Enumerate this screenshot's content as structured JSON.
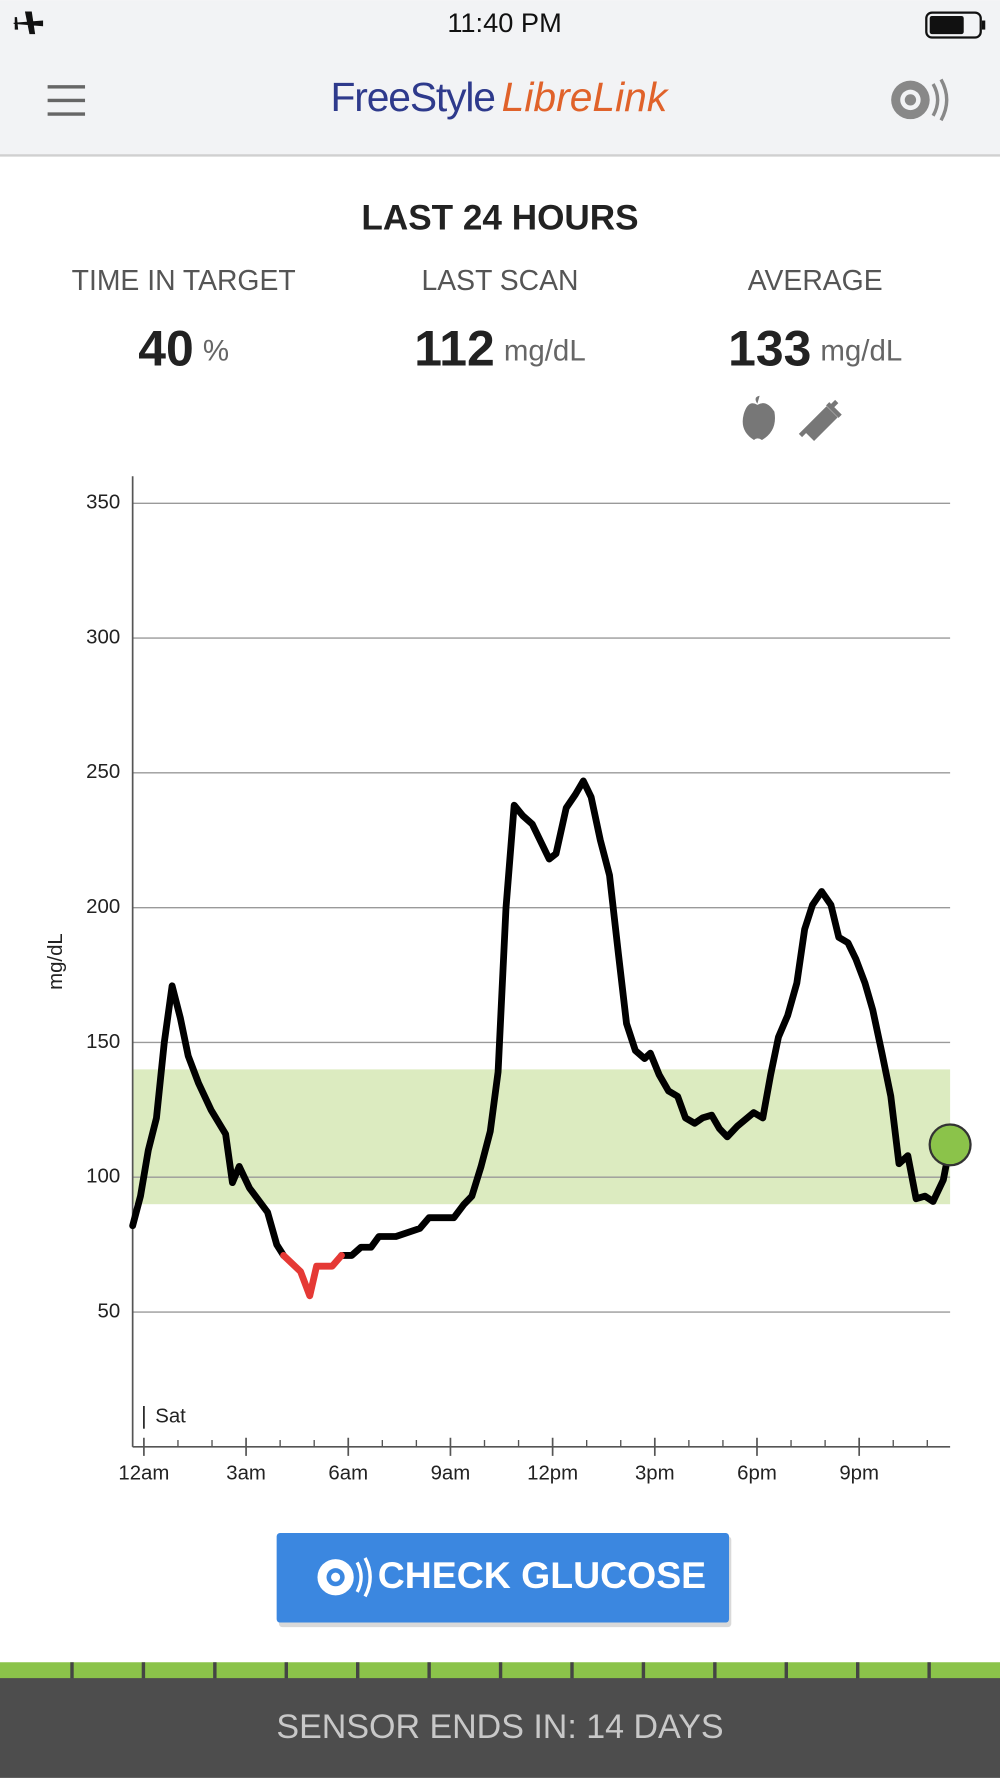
{
  "status_bar": {
    "time": "11:40 PM"
  },
  "header": {
    "brand_freestyle": "FreeStyle",
    "brand_librelink": "LibreLink"
  },
  "summary": {
    "title": "LAST 24 HOURS",
    "stats": [
      {
        "label": "TIME IN TARGET",
        "value": 40,
        "unit": "%"
      },
      {
        "label": "LAST SCAN",
        "value": 112,
        "unit": "mg/dL"
      },
      {
        "label": "AVERAGE",
        "value": 133,
        "unit": "mg/dL"
      }
    ]
  },
  "chart_data": {
    "type": "line",
    "y_label": "mg/dL",
    "xlim": [
      -0.33,
      23.67
    ],
    "ylim": [
      0,
      360
    ],
    "yticks": [
      50,
      100,
      150,
      200,
      250,
      300,
      350
    ],
    "xticks": [
      {
        "value": 0,
        "label": "12am"
      },
      {
        "value": 3,
        "label": "3am"
      },
      {
        "value": 6,
        "label": "6am"
      },
      {
        "value": 9,
        "label": "9am"
      },
      {
        "value": 12,
        "label": "12pm"
      },
      {
        "value": 15,
        "label": "3pm"
      },
      {
        "value": 18,
        "label": "6pm"
      },
      {
        "value": 21,
        "label": "9pm"
      }
    ],
    "xminorticks": [
      1,
      2,
      4,
      5,
      7,
      8,
      10,
      11,
      13,
      14,
      16,
      17,
      19,
      20,
      22,
      23
    ],
    "grid": true,
    "target_range": [
      90,
      140
    ],
    "target_color": "#dcebc0",
    "day_marker": {
      "label": "Sat",
      "x": 0
    },
    "current_color": "#8bc34a",
    "x": [
      -0.33,
      -0.1,
      0.13,
      0.37,
      0.6,
      0.83,
      1.07,
      1.3,
      1.6,
      1.97,
      2.4,
      2.6,
      2.8,
      3.1,
      3.63,
      3.9,
      4.1,
      4.6,
      4.87,
      5.07,
      5.53,
      5.8,
      6.1,
      6.37,
      6.67,
      6.9,
      7.4,
      8.1,
      8.37,
      9.1,
      9.4,
      9.63,
      9.9,
      10.17,
      10.4,
      10.63,
      10.87,
      11.13,
      11.4,
      11.9,
      12.1,
      12.4,
      12.67,
      12.9,
      13.13,
      13.4,
      13.67,
      13.93,
      14.17,
      14.43,
      14.7,
      14.87,
      15.13,
      15.4,
      15.67,
      15.9,
      16.17,
      16.4,
      16.67,
      16.9,
      17.13,
      17.43,
      17.9,
      18.17,
      18.4,
      18.63,
      18.9,
      19.17,
      19.4,
      19.63,
      19.9,
      20.17,
      20.4,
      20.67,
      20.9,
      21.17,
      21.4,
      21.67,
      21.93,
      22.17,
      22.43,
      22.67,
      22.93,
      23.17,
      23.47,
      23.67
    ],
    "series": [
      {
        "color": "#000000",
        "values": [
          82,
          93,
          110,
          122,
          150,
          171,
          159,
          145,
          135,
          125,
          116,
          98,
          104,
          96,
          87,
          75,
          71,
          null,
          null,
          null,
          null,
          71,
          71,
          74,
          74,
          78,
          78,
          81,
          85,
          85,
          90,
          93,
          104,
          117,
          139,
          200,
          238,
          234,
          231,
          218,
          220,
          237,
          242,
          247,
          241,
          225,
          212,
          183,
          157,
          147,
          144,
          146,
          138,
          132,
          130,
          122,
          120,
          122,
          123,
          118,
          115,
          119,
          124,
          122,
          138,
          152,
          160,
          172,
          192,
          201,
          206,
          201,
          189,
          187,
          181,
          172,
          162,
          146,
          130,
          105,
          108,
          92,
          93,
          91,
          99,
          112
        ]
      },
      {
        "color": "#e53935",
        "values": [
          null,
          null,
          null,
          null,
          null,
          null,
          null,
          null,
          null,
          null,
          null,
          null,
          null,
          null,
          null,
          null,
          71,
          65,
          56,
          67,
          67,
          71,
          null,
          null,
          null,
          null,
          null,
          null,
          null,
          null,
          null,
          null,
          null,
          null,
          null,
          null,
          null,
          null,
          null,
          null,
          null,
          null,
          null,
          null,
          null,
          null,
          null,
          null,
          null,
          null,
          null,
          null,
          null,
          null,
          null,
          null,
          null,
          null,
          null,
          null,
          null,
          null,
          null,
          null,
          null,
          null,
          null,
          null,
          null,
          null,
          null,
          null,
          null,
          null,
          null,
          null,
          null,
          null,
          null,
          null,
          null,
          null,
          null,
          null,
          null,
          null
        ]
      }
    ]
  },
  "button": {
    "label": "CHECK GLUCOSE"
  },
  "footer": {
    "text": "SENSOR ENDS IN: 14 DAYS"
  }
}
